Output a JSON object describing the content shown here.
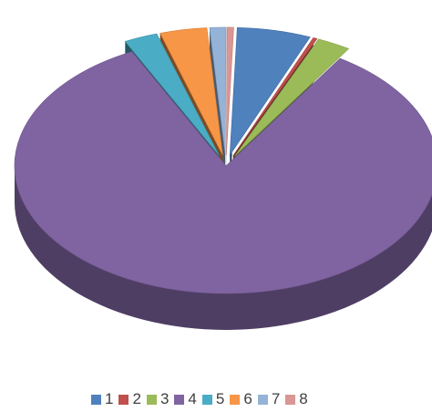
{
  "chart_data": {
    "type": "pie",
    "style": "3d-exploded",
    "legend_position": "bottom",
    "title": "",
    "slices": [
      {
        "label": "1",
        "value": 5.5,
        "color": "#4F81BD"
      },
      {
        "label": "2",
        "value": 0.3,
        "color": "#C0504D"
      },
      {
        "label": "3",
        "value": 2.5,
        "color": "#9BBB59"
      },
      {
        "label": "4",
        "value": 81.5,
        "color": "#8064A2"
      },
      {
        "label": "5",
        "value": 2.5,
        "color": "#4BACC6"
      },
      {
        "label": "6",
        "value": 3.5,
        "color": "#F79646"
      },
      {
        "label": "7",
        "value": 1.2,
        "color": "#95B3D7"
      },
      {
        "label": "8",
        "value": 0.5,
        "color": "#D99694"
      }
    ]
  }
}
